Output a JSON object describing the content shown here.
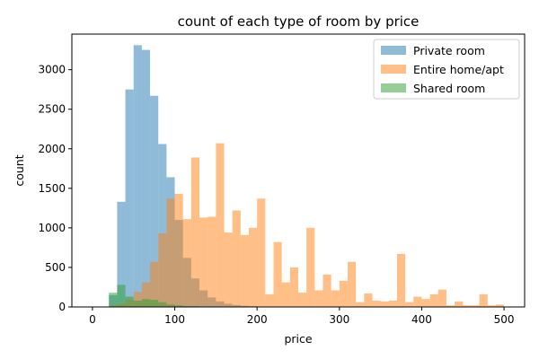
{
  "chart_data": {
    "type": "histogram",
    "title": "count of each type of room by price",
    "xlabel": "price",
    "ylabel": "count",
    "xlim": [
      -25,
      525
    ],
    "ylim": [
      0,
      3450
    ],
    "xticks": [
      0,
      100,
      200,
      300,
      400,
      500
    ],
    "yticks": [
      0,
      500,
      1000,
      1500,
      2000,
      2500,
      3000
    ],
    "legend_position": "top-right",
    "grid": false,
    "series": [
      {
        "name": "Private room",
        "color": "#1f77b4",
        "alpha": 0.5,
        "bin_start": 20,
        "bin_width": 10,
        "counts": [
          150,
          1330,
          2750,
          3310,
          3250,
          2670,
          2060,
          1640,
          1100,
          620,
          360,
          210,
          120,
          70,
          40,
          25,
          15,
          10,
          5,
          3,
          2,
          0,
          0,
          0,
          0,
          0,
          0,
          0,
          0,
          0,
          0,
          0,
          0,
          0,
          0,
          0,
          0,
          0,
          0,
          0,
          0,
          0,
          0,
          0,
          0,
          0,
          0,
          0
        ]
      },
      {
        "name": "Entire home/apt",
        "color": "#ff7f0e",
        "alpha": 0.5,
        "bin_start": 20,
        "bin_width": 10,
        "counts": [
          20,
          40,
          90,
          190,
          310,
          570,
          930,
          1370,
          1430,
          1110,
          1890,
          1130,
          1140,
          2070,
          940,
          1220,
          910,
          1000,
          1370,
          160,
          820,
          310,
          500,
          180,
          1000,
          210,
          410,
          210,
          330,
          570,
          60,
          170,
          80,
          70,
          80,
          670,
          60,
          130,
          100,
          160,
          220,
          20,
          70,
          20,
          20,
          160,
          20,
          30
        ]
      },
      {
        "name": "Shared room",
        "color": "#2ca02c",
        "alpha": 0.5,
        "bin_start": 20,
        "bin_width": 10,
        "counts": [
          180,
          280,
          130,
          80,
          100,
          90,
          60,
          30,
          20,
          10,
          10,
          5,
          5,
          5,
          5,
          0,
          0,
          0,
          0,
          0,
          0,
          0,
          0,
          0,
          0,
          0,
          0,
          0,
          0,
          0,
          0,
          0,
          0,
          0,
          0,
          0,
          0,
          0,
          0,
          0,
          0,
          0,
          0,
          0,
          0,
          0,
          0,
          0
        ]
      }
    ]
  }
}
